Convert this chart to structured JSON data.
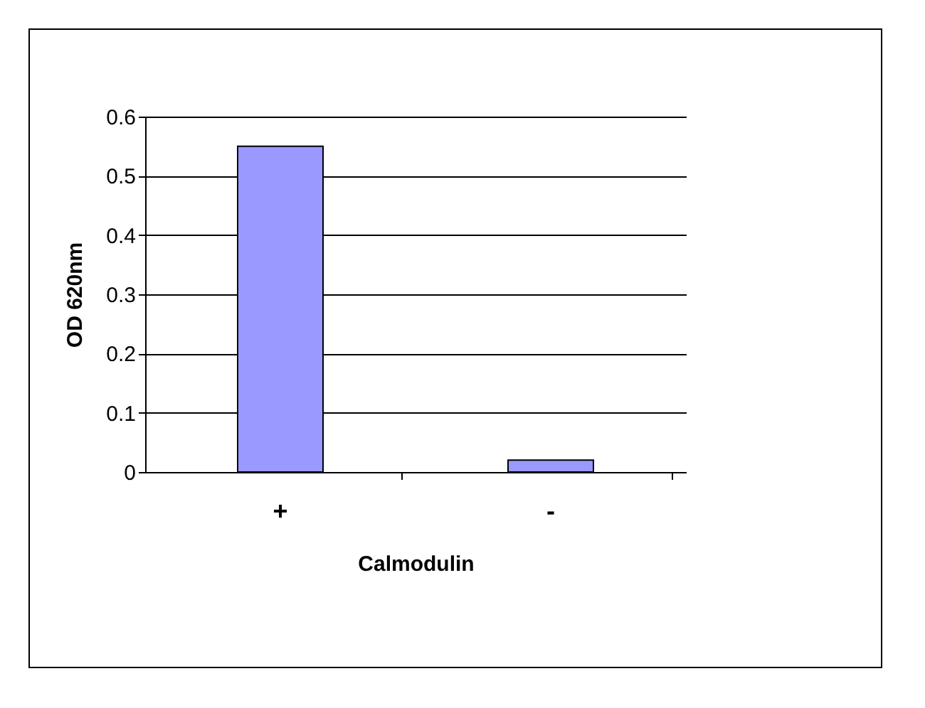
{
  "chart_data": {
    "type": "bar",
    "xlabel": "Calmodulin",
    "ylabel": "OD 620nm",
    "categories": [
      "+",
      "-"
    ],
    "values": [
      0.55,
      0.02
    ],
    "color": "#9999ff",
    "ylim": [
      0,
      0.6
    ],
    "yticks": [
      0,
      0.1,
      0.2,
      0.3,
      0.4,
      0.5,
      0.6
    ],
    "grid": "y"
  }
}
